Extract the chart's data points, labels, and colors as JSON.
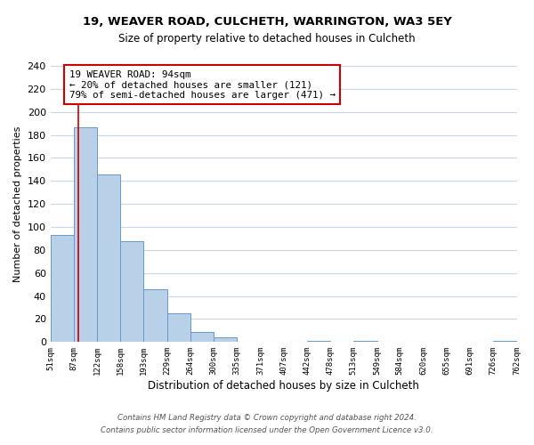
{
  "title": "19, WEAVER ROAD, CULCHETH, WARRINGTON, WA3 5EY",
  "subtitle": "Size of property relative to detached houses in Culcheth",
  "xlabel": "Distribution of detached houses by size in Culcheth",
  "ylabel": "Number of detached properties",
  "bar_edges": [
    51,
    87,
    122,
    158,
    193,
    229,
    264,
    300,
    335,
    371,
    407,
    442,
    478,
    513,
    549,
    584,
    620,
    655,
    691,
    726,
    762
  ],
  "bar_heights": [
    93,
    187,
    146,
    88,
    46,
    25,
    9,
    4,
    0,
    0,
    0,
    1,
    0,
    1,
    0,
    0,
    0,
    0,
    0,
    1
  ],
  "bar_color": "#b8d0e8",
  "bar_edge_color": "#6699cc",
  "property_line_x": 94,
  "property_line_color": "#cc0000",
  "ylim": [
    0,
    240
  ],
  "yticks": [
    0,
    20,
    40,
    60,
    80,
    100,
    120,
    140,
    160,
    180,
    200,
    220,
    240
  ],
  "tick_labels": [
    "51sqm",
    "87sqm",
    "122sqm",
    "158sqm",
    "193sqm",
    "229sqm",
    "264sqm",
    "300sqm",
    "335sqm",
    "371sqm",
    "407sqm",
    "442sqm",
    "478sqm",
    "513sqm",
    "549sqm",
    "584sqm",
    "620sqm",
    "655sqm",
    "691sqm",
    "726sqm",
    "762sqm"
  ],
  "annotation_title": "19 WEAVER ROAD: 94sqm",
  "annotation_line1": "← 20% of detached houses are smaller (121)",
  "annotation_line2": "79% of semi-detached houses are larger (471) →",
  "footer_line1": "Contains HM Land Registry data © Crown copyright and database right 2024.",
  "footer_line2": "Contains public sector information licensed under the Open Government Licence v3.0.",
  "background_color": "#ffffff",
  "grid_color": "#c8d8e8"
}
